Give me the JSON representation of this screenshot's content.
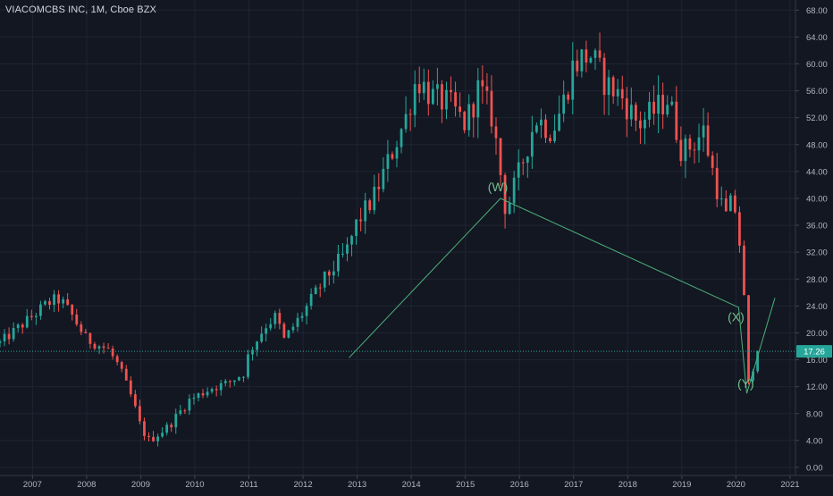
{
  "chart_data": {
    "type": "candlestick",
    "title": "VIACOMCBS INC, 1M, Cboe BZX",
    "y_axis": {
      "ticks": [
        "0.00",
        "4.00",
        "8.00",
        "12.00",
        "16.00",
        "20.00",
        "24.00",
        "28.00",
        "32.00",
        "36.00",
        "40.00",
        "44.00",
        "48.00",
        "52.00",
        "56.00",
        "60.00",
        "64.00",
        "68.00"
      ],
      "ylim": [
        -1.2,
        69.5
      ]
    },
    "x_axis": {
      "ticks": [
        "2007",
        "2008",
        "2009",
        "2010",
        "2011",
        "2012",
        "2013",
        "2014",
        "2015",
        "2016",
        "2017",
        "2018",
        "2019",
        "2020",
        "2021"
      ],
      "xlim": [
        2006.4,
        2021.1
      ]
    },
    "last_price": {
      "label": "17.26",
      "value": 17.26
    },
    "grid": true,
    "colors": {
      "background": "#131722",
      "grid": "#1f2433",
      "up": "#26a69a",
      "down": "#ef5350",
      "axis_text": "#b2b5be",
      "wave_line": "#4caf78",
      "wave_label": "#6fc18a",
      "price_line": "#26a69a"
    },
    "series_key_points": [
      {
        "t": 2006.4,
        "p": 18.5
      },
      {
        "t": 2007.0,
        "p": 22.5
      },
      {
        "t": 2007.3,
        "p": 24.5
      },
      {
        "t": 2007.5,
        "p": 25.0
      },
      {
        "t": 2007.7,
        "p": 23.0
      },
      {
        "t": 2008.0,
        "p": 19.0
      },
      {
        "t": 2008.4,
        "p": 17.5
      },
      {
        "t": 2008.6,
        "p": 15.0
      },
      {
        "t": 2008.85,
        "p": 10.0
      },
      {
        "t": 2009.0,
        "p": 6.0
      },
      {
        "t": 2009.15,
        "p": 4.0
      },
      {
        "t": 2009.5,
        "p": 6.0
      },
      {
        "t": 2009.9,
        "p": 10.0
      },
      {
        "t": 2010.3,
        "p": 11.8
      },
      {
        "t": 2010.6,
        "p": 12.5
      },
      {
        "t": 2010.9,
        "p": 14.0
      },
      {
        "t": 2011.0,
        "p": 17.0
      },
      {
        "t": 2011.3,
        "p": 21.0
      },
      {
        "t": 2011.5,
        "p": 22.5
      },
      {
        "t": 2011.65,
        "p": 19.0
      },
      {
        "t": 2012.0,
        "p": 23.0
      },
      {
        "t": 2012.4,
        "p": 28.0
      },
      {
        "t": 2012.8,
        "p": 32.0
      },
      {
        "t": 2013.0,
        "p": 36.5
      },
      {
        "t": 2013.3,
        "p": 40.0
      },
      {
        "t": 2013.6,
        "p": 46.0
      },
      {
        "t": 2013.9,
        "p": 52.0
      },
      {
        "t": 2014.1,
        "p": 58.0
      },
      {
        "t": 2014.4,
        "p": 55.0
      },
      {
        "t": 2014.7,
        "p": 54.0
      },
      {
        "t": 2015.0,
        "p": 51.0
      },
      {
        "t": 2015.25,
        "p": 56.5
      },
      {
        "t": 2015.5,
        "p": 52.0
      },
      {
        "t": 2015.75,
        "p": 38.0
      },
      {
        "t": 2016.0,
        "p": 44.0
      },
      {
        "t": 2016.3,
        "p": 52.0
      },
      {
        "t": 2016.6,
        "p": 50.0
      },
      {
        "t": 2016.8,
        "p": 54.0
      },
      {
        "t": 2017.0,
        "p": 60.0
      },
      {
        "t": 2017.3,
        "p": 61.5
      },
      {
        "t": 2017.6,
        "p": 57.0
      },
      {
        "t": 2017.9,
        "p": 55.0
      },
      {
        "t": 2018.2,
        "p": 51.0
      },
      {
        "t": 2018.5,
        "p": 53.0
      },
      {
        "t": 2018.75,
        "p": 55.0
      },
      {
        "t": 2019.0,
        "p": 47.0
      },
      {
        "t": 2019.2,
        "p": 48.0
      },
      {
        "t": 2019.4,
        "p": 50.0
      },
      {
        "t": 2019.6,
        "p": 43.0
      },
      {
        "t": 2019.8,
        "p": 37.0
      },
      {
        "t": 2019.95,
        "p": 40.0
      },
      {
        "t": 2020.05,
        "p": 35.0
      },
      {
        "t": 2020.15,
        "p": 25.0
      },
      {
        "t": 2020.22,
        "p": 12.0
      },
      {
        "t": 2020.35,
        "p": 16.0
      },
      {
        "t": 2020.45,
        "p": 17.26
      }
    ],
    "wave_lines": [
      {
        "points": [
          [
            2012.85,
            16.3
          ],
          [
            2015.65,
            40.0
          ],
          [
            2020.05,
            23.8
          ],
          [
            2020.2,
            11.0
          ],
          [
            2020.72,
            25.2
          ]
        ]
      }
    ],
    "wave_labels": [
      {
        "text": "(W)",
        "t": 2015.6,
        "p": 41.7
      },
      {
        "text": "(X)",
        "t": 2020.0,
        "p": 22.4
      },
      {
        "text": "(Y)",
        "t": 2020.18,
        "p": 12.5
      }
    ]
  }
}
